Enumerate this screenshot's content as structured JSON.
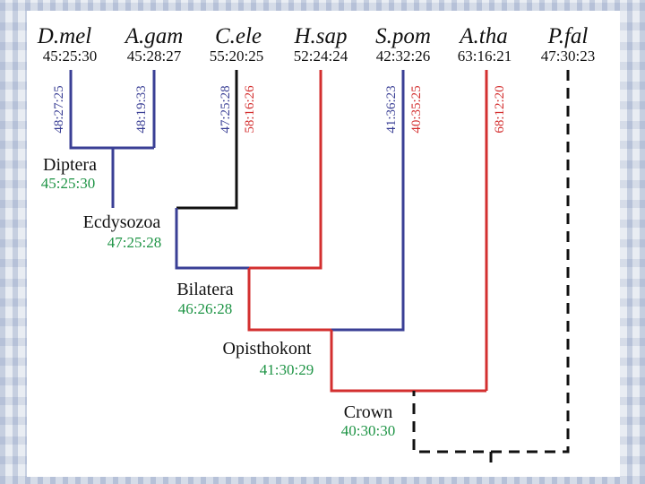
{
  "colors": {
    "blue": "#3a3f95",
    "red": "#d32f2f",
    "black": "#111111",
    "green": "#1e9445"
  },
  "species": [
    {
      "name": "D.mel",
      "ratio": "45:25:30"
    },
    {
      "name": "A.gam",
      "ratio": "45:28:27"
    },
    {
      "name": "C.ele",
      "ratio": "55:20:25"
    },
    {
      "name": "H.sap",
      "ratio": "52:24:24"
    },
    {
      "name": "S.pom",
      "ratio": "42:32:26"
    },
    {
      "name": "A.tha",
      "ratio": "63:16:21"
    },
    {
      "name": "P.fal",
      "ratio": "47:30:23"
    }
  ],
  "nodes": [
    {
      "name": "Diptera",
      "ratio": "45:25:30"
    },
    {
      "name": "Ecdysozoa",
      "ratio": "47:25:28"
    },
    {
      "name": "Bilatera",
      "ratio": "46:26:28"
    },
    {
      "name": "Opisthokont",
      "ratio": "41:30:29"
    },
    {
      "name": "Crown",
      "ratio": "40:30:30"
    }
  ],
  "branch_labels": [
    {
      "text": "48:27:25",
      "color": "blue"
    },
    {
      "text": "48:19:33",
      "color": "blue"
    },
    {
      "text": "47:25:28",
      "color": "blue"
    },
    {
      "text": "58:16:26",
      "color": "red"
    },
    {
      "text": "41:36:23",
      "color": "blue"
    },
    {
      "text": "40:35:25",
      "color": "red"
    },
    {
      "text": "68:12:20",
      "color": "red"
    }
  ]
}
